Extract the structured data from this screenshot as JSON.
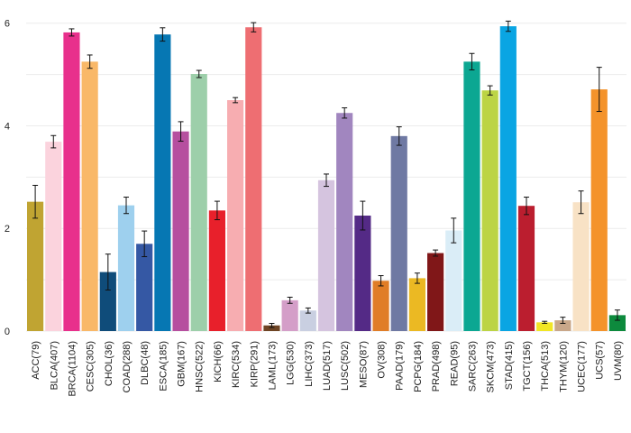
{
  "chart_data": {
    "type": "bar",
    "title": "",
    "xlabel": "",
    "ylabel": "",
    "ylim": [
      0,
      6.1
    ],
    "yticks": [
      0,
      2,
      4,
      6
    ],
    "grid": true,
    "legend": "none",
    "categories": [
      "ACC(79)",
      "BLCA(407)",
      "BRCA(1104)",
      "CESC(305)",
      "CHOL(36)",
      "COAD(288)",
      "DLBC(48)",
      "ESCA(185)",
      "GBM(167)",
      "HNSC(522)",
      "KICH(66)",
      "KIRC(534)",
      "KIRP(291)",
      "LAML(173)",
      "LGG(530)",
      "LIHC(373)",
      "LUAD(517)",
      "LUSC(502)",
      "MESO(87)",
      "OV(308)",
      "PAAD(179)",
      "PCPG(184)",
      "PRAD(498)",
      "READ(95)",
      "SARC(263)",
      "SKCM(473)",
      "STAD(415)",
      "TGCT(156)",
      "THCA(513)",
      "THYM(120)",
      "UCEC(177)",
      "UCS(57)",
      "UVM(80)"
    ],
    "values": [
      2.52,
      3.69,
      5.82,
      5.25,
      1.15,
      2.45,
      1.7,
      5.78,
      3.89,
      5.01,
      2.35,
      4.5,
      5.92,
      0.11,
      0.6,
      0.4,
      2.94,
      4.25,
      2.25,
      0.98,
      3.8,
      1.03,
      1.52,
      1.96,
      5.25,
      4.69,
      5.94,
      2.44,
      0.17,
      0.21,
      2.51,
      4.71,
      0.31
    ],
    "errors": [
      0.32,
      0.12,
      0.07,
      0.13,
      0.35,
      0.16,
      0.25,
      0.13,
      0.19,
      0.07,
      0.18,
      0.05,
      0.09,
      0.04,
      0.06,
      0.05,
      0.12,
      0.1,
      0.28,
      0.1,
      0.18,
      0.1,
      0.06,
      0.24,
      0.16,
      0.09,
      0.1,
      0.17,
      0.02,
      0.06,
      0.22,
      0.43,
      0.1
    ],
    "colors": [
      "#c0a432",
      "#fbd3dd",
      "#e8308c",
      "#f9b868",
      "#0f4c7a",
      "#9ed0ee",
      "#3558a4",
      "#0677b3",
      "#b64f9f",
      "#9dcfaa",
      "#e8202b",
      "#f7adb1",
      "#ee6e72",
      "#6e4424",
      "#d49ec8",
      "#c9cfe1",
      "#d5c4df",
      "#a186bf",
      "#542a86",
      "#e07d27",
      "#6f79a3",
      "#ebb923",
      "#801718",
      "#daedf7",
      "#0ca792",
      "#bcd445",
      "#0aa5e3",
      "#bb1e2f",
      "#f1e625",
      "#c9a789",
      "#f8e2c5",
      "#f4932b",
      "#0d8a3d"
    ]
  }
}
